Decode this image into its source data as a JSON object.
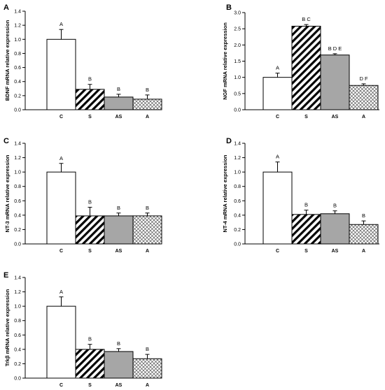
{
  "chart_data": [
    {
      "type": "bar",
      "panel": "A",
      "categories": [
        "C",
        "S",
        "AS",
        "A"
      ],
      "values": [
        1.0,
        0.29,
        0.18,
        0.15
      ],
      "errors": [
        0.14,
        0.07,
        0.04,
        0.06
      ],
      "labels": [
        "A",
        "B",
        "B",
        "B"
      ],
      "ylabel": "BDNF mRNA relative expression",
      "ylim": [
        0,
        1.4
      ],
      "yticks": [
        "0.0",
        "0.2",
        "0.4",
        "0.6",
        "0.8",
        "1.0",
        "1.2",
        "1.4"
      ]
    },
    {
      "type": "bar",
      "panel": "B",
      "categories": [
        "C",
        "S",
        "AS",
        "A"
      ],
      "values": [
        1.0,
        2.58,
        1.69,
        0.75
      ],
      "errors": [
        0.13,
        0.05,
        0.04,
        0.05
      ],
      "labels": [
        "A",
        "B C",
        "B D E",
        "D F"
      ],
      "ylabel": "NGF mRNA relative expression",
      "ylim": [
        0,
        3.0
      ],
      "yticks": [
        "0.0",
        "0.5",
        "1.0",
        "1.5",
        "2.0",
        "2.5",
        "3.0"
      ]
    },
    {
      "type": "bar",
      "panel": "C",
      "categories": [
        "C",
        "S",
        "AS",
        "A"
      ],
      "values": [
        1.0,
        0.39,
        0.39,
        0.39
      ],
      "errors": [
        0.12,
        0.12,
        0.04,
        0.04
      ],
      "labels": [
        "A",
        "B",
        "B",
        "B"
      ],
      "ylabel": "NT-3 mRNA relative expression",
      "ylim": [
        0,
        1.4
      ],
      "yticks": [
        "0.0",
        "0.2",
        "0.4",
        "0.6",
        "0.8",
        "1.0",
        "1.2",
        "1.4"
      ]
    },
    {
      "type": "bar",
      "panel": "D",
      "categories": [
        "C",
        "S",
        "AS",
        "A"
      ],
      "values": [
        1.0,
        0.41,
        0.42,
        0.27
      ],
      "errors": [
        0.14,
        0.06,
        0.04,
        0.05
      ],
      "labels": [
        "A",
        "B",
        "B",
        "B"
      ],
      "ylabel": "NT-4 mRNA relative expression",
      "ylim": [
        0,
        1.4
      ],
      "yticks": [
        "0.0",
        "0.2",
        "0.4",
        "0.6",
        "0.8",
        "1.0",
        "1.2",
        "1.4"
      ]
    },
    {
      "type": "bar",
      "panel": "E",
      "categories": [
        "C",
        "S",
        "AS",
        "A"
      ],
      "values": [
        1.0,
        0.4,
        0.37,
        0.27
      ],
      "errors": [
        0.13,
        0.07,
        0.04,
        0.06
      ],
      "labels": [
        "A",
        "B",
        "B",
        "B"
      ],
      "ylabel": "Trkβ mRNA relative expression",
      "ylim": [
        0,
        1.4
      ],
      "yticks": [
        "0.0",
        "0.2",
        "0.4",
        "0.6",
        "0.8",
        "1.0",
        "1.2",
        "1.4"
      ]
    }
  ],
  "bar_styles": [
    "white",
    "diagonal-stripes",
    "solid-gray",
    "crosshatch"
  ],
  "colors": {
    "gray_bar": "#a6a6a6",
    "axis": "#000000",
    "hatch": "#000000"
  }
}
